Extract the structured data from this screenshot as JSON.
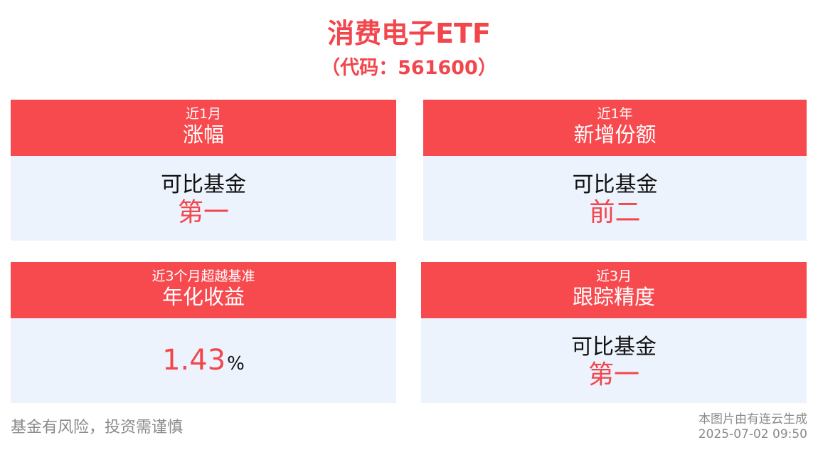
{
  "header": {
    "title": "消费电子ETF",
    "subtitle": "（代码：561600）"
  },
  "cards": [
    {
      "head_line1": "近1月",
      "head_line2": "涨幅",
      "body_line1": "可比基金",
      "body_line2": "第一"
    },
    {
      "head_line1": "近1年",
      "head_line2": "新增份额",
      "body_line1": "可比基金",
      "body_line2": "前二"
    },
    {
      "head_line1": "近3个月超越基准",
      "head_line2": "年化收益",
      "value": "1.43",
      "unit": "%"
    },
    {
      "head_line1": "近3月",
      "head_line2": "跟踪精度",
      "body_line1": "可比基金",
      "body_line2": "第一"
    }
  ],
  "footer": {
    "disclaimer": "基金有风险，投资需谨慎",
    "generator": "本图片由有连云生成",
    "timestamp": "2025-07-02 09:50"
  },
  "colors": {
    "accent": "#f74a4f",
    "card_body_bg": "#edf3fc"
  }
}
